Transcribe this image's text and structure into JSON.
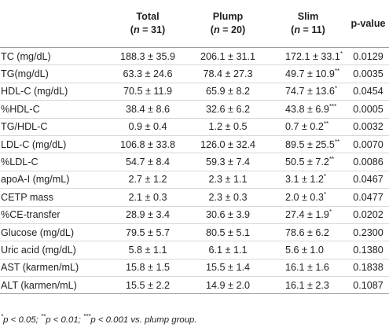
{
  "table": {
    "columns": [
      {
        "name": "Total",
        "sub": [
          "(",
          "n",
          " = 31)"
        ]
      },
      {
        "name": "Plump",
        "sub": [
          "(",
          "n",
          " = 20)"
        ]
      },
      {
        "name": "Slim",
        "sub": [
          "(",
          "n",
          " = 11)"
        ]
      },
      {
        "name": "p-value"
      }
    ],
    "rows": [
      {
        "label": "TC (mg/dL)",
        "total": "188.3 ± 35.9",
        "plump": "206.1 ± 31.1",
        "slim": "172.1 ± 33.1",
        "slim_mark": "*",
        "p": "0.0129"
      },
      {
        "label": "TG(mg/dL)",
        "total": "63.3 ± 24.6",
        "plump": "78.4 ± 27.3",
        "slim": "49.7 ± 10.9",
        "slim_mark": "**",
        "p": "0.0035"
      },
      {
        "label": "HDL-C (mg/dL)",
        "total": "70.5 ± 11.9",
        "plump": "65.9 ± 8.2",
        "slim": "74.7 ± 13.6",
        "slim_mark": "*",
        "p": "0.0454"
      },
      {
        "label": "%HDL-C",
        "total": "38.4 ± 8.6",
        "plump": "32.6 ± 6.2",
        "slim": "43.8 ± 6.9",
        "slim_mark": "***",
        "p": "0.0005"
      },
      {
        "label": "TG/HDL-C",
        "total": "0.9 ± 0.4",
        "plump": "1.2 ± 0.5",
        "slim": "0.7 ± 0.2",
        "slim_mark": "**",
        "p": "0.0032"
      },
      {
        "label": "LDL-C (mg/dL)",
        "total": "106.8 ± 33.8",
        "plump": "126.0 ± 32.4",
        "slim": "89.5 ± 25.5",
        "slim_mark": "**",
        "p": "0.0070"
      },
      {
        "label": "%LDL-C",
        "total": "54.7 ± 8.4",
        "plump": "59.3 ± 7.4",
        "slim": "50.5 ± 7.2",
        "slim_mark": "**",
        "p": "0.0086"
      },
      {
        "label": "apoA-I (mg/mL)",
        "total": "2.7 ± 1.2",
        "plump": "2.3 ± 1.1",
        "slim": "3.1 ± 1.2",
        "slim_mark": "*",
        "p": "0.0467"
      },
      {
        "label": "CETP mass",
        "total": "2.1 ± 0.3",
        "plump": "2.3 ± 0.3",
        "slim": "2.0 ± 0.3",
        "slim_mark": "*",
        "p": "0.0477"
      },
      {
        "label": "%CE-transfer",
        "total": "28.9 ± 3.4",
        "plump": "30.6 ± 3.9",
        "slim": "27.4 ± 1.9",
        "slim_mark": "*",
        "p": "0.0202"
      },
      {
        "label": "Glucose (mg/dL)",
        "total": "79.5 ± 5.7",
        "plump": "80.5 ± 5.1",
        "slim": "78.6 ± 6.2",
        "p": "0.2300"
      },
      {
        "label": "Uric acid (mg/dL)",
        "total": "5.8 ± 1.1",
        "plump": "6.1 ± 1.1",
        "slim": "5.6 ± 1.0",
        "p": "0.1380"
      },
      {
        "label": "AST (karmen/mL)",
        "total": "15.8 ± 1.5",
        "plump": "15.5 ± 1.4",
        "slim": "16.1 ± 1.6",
        "p": "0.1838"
      },
      {
        "label": "ALT (karmen/mL)",
        "total": "15.5 ± 2.2",
        "plump": "14.9 ± 2.0",
        "slim": "16.1 ± 2.3",
        "p": "0.1087"
      }
    ]
  },
  "footnote": [
    {
      "sup": "*",
      "text": "p < 0.05; "
    },
    {
      "sup": "**",
      "text": "p < 0.01; "
    },
    {
      "sup": "***",
      "text": "p < 0.001 vs. plump group."
    }
  ]
}
